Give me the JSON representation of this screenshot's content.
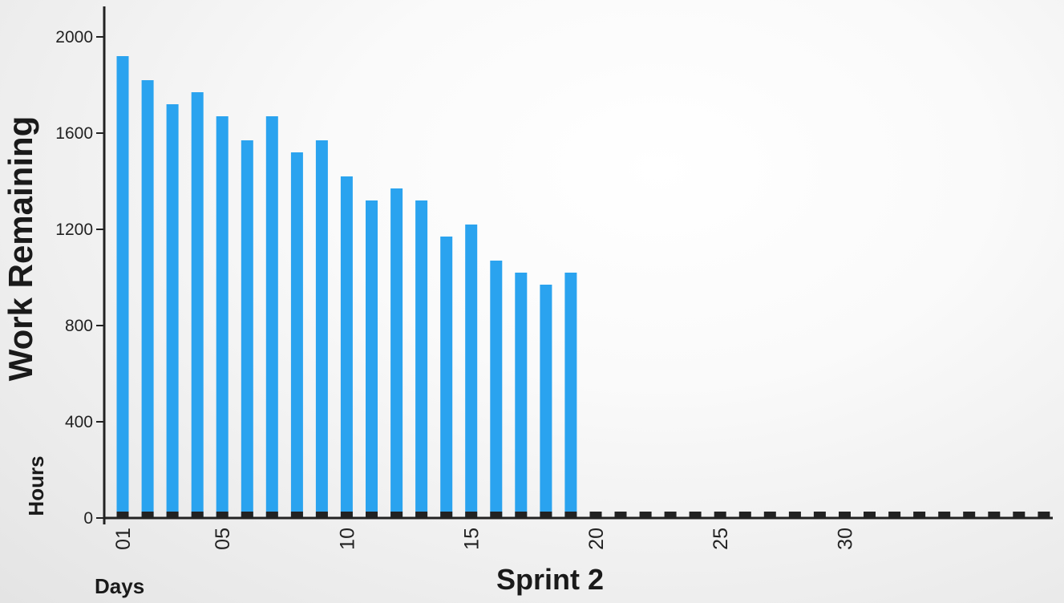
{
  "chart_data": {
    "type": "bar",
    "title": "Sprint 2",
    "ylabel": "Work Remaining",
    "y_unit_label": "Hours",
    "x_unit_label": "Days",
    "ylim": [
      0,
      2000
    ],
    "y_ticks": [
      0,
      400,
      800,
      1200,
      1600,
      2000
    ],
    "x_range": [
      1,
      38
    ],
    "x_tick_labels": [
      {
        "day": 1,
        "label": "01"
      },
      {
        "day": 5,
        "label": "05"
      },
      {
        "day": 10,
        "label": "10"
      },
      {
        "day": 15,
        "label": "15"
      },
      {
        "day": 20,
        "label": "20"
      },
      {
        "day": 25,
        "label": "25"
      },
      {
        "day": 30,
        "label": "30"
      }
    ],
    "days": [
      1,
      2,
      3,
      4,
      5,
      6,
      7,
      8,
      9,
      10,
      11,
      12,
      13,
      14,
      15,
      16,
      17,
      18,
      19
    ],
    "values": [
      1920,
      1820,
      1720,
      1770,
      1670,
      1570,
      1670,
      1520,
      1570,
      1420,
      1320,
      1370,
      1320,
      1170,
      1220,
      1070,
      1020,
      970,
      1020
    ],
    "bar_color": "#2aa3ef",
    "day_marker_color": "#222222",
    "grid": false
  }
}
